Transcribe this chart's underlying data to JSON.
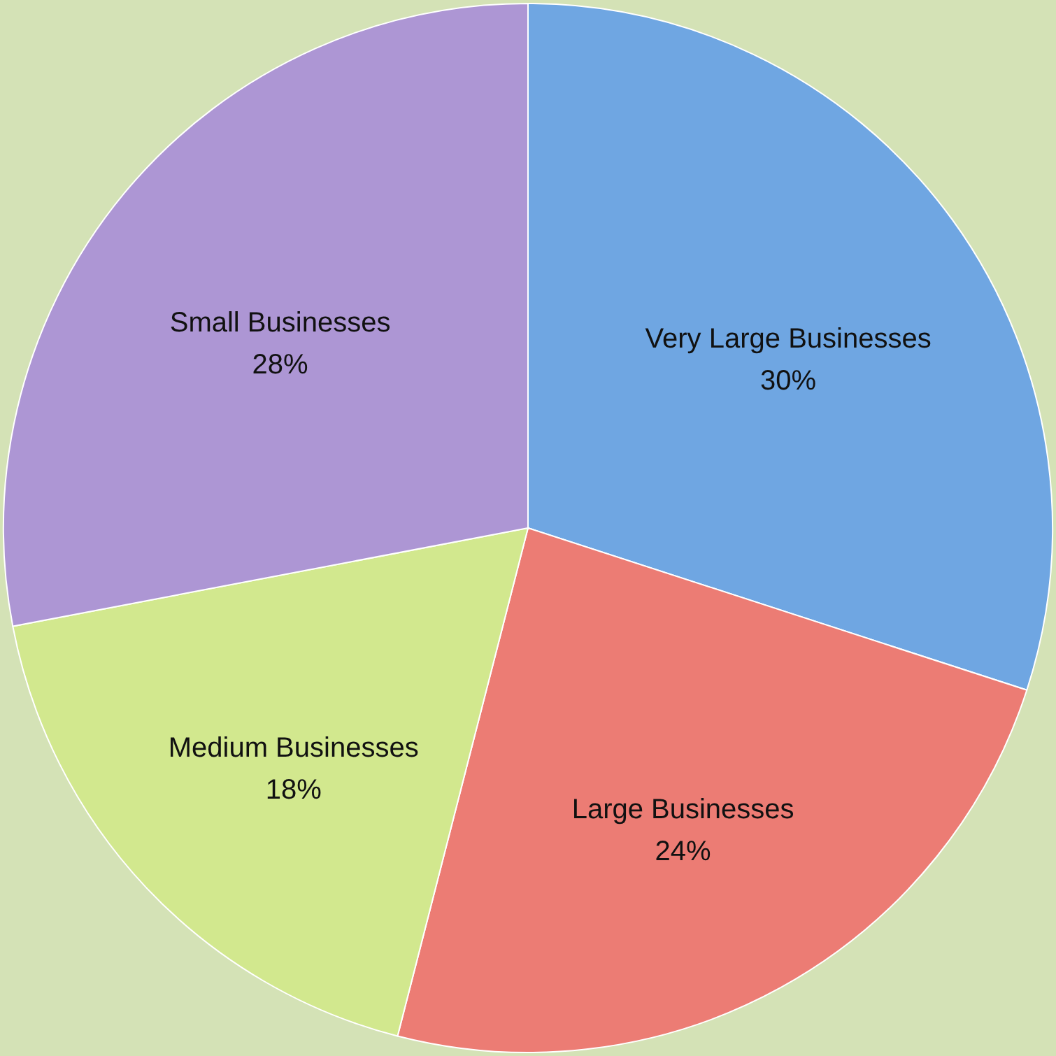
{
  "chart_data": {
    "type": "pie",
    "categories": [
      "Very Large Businesses",
      "Large Businesses",
      "Medium Businesses",
      "Small Businesses"
    ],
    "values": [
      30,
      24,
      18,
      28
    ],
    "value_labels": [
      "30%",
      "24%",
      "18%",
      "28%"
    ],
    "colors": [
      "#6fa6e2",
      "#ec7c74",
      "#d2e88e",
      "#ad96d4"
    ]
  }
}
